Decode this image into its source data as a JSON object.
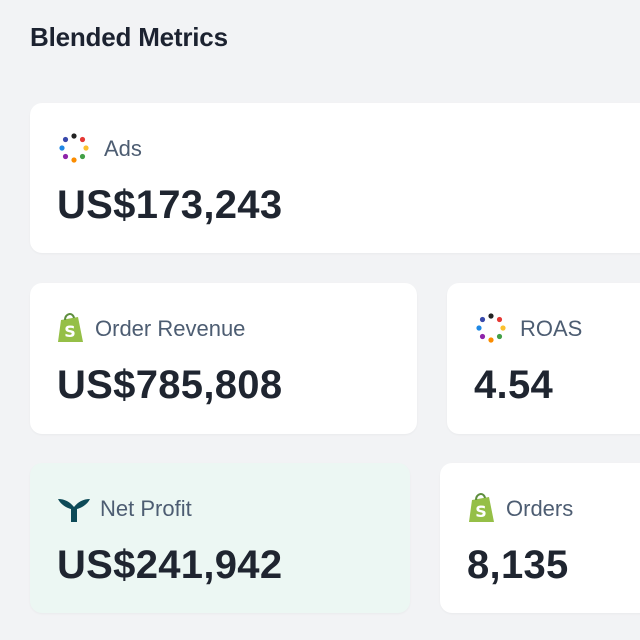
{
  "header": {
    "title": "Blended Metrics"
  },
  "cards": [
    {
      "label": "Ads",
      "value": "US$173,243"
    },
    {
      "label": "Order Revenue",
      "value": "US$785,808"
    },
    {
      "label": "ROAS",
      "value": "4.54"
    },
    {
      "label": "Net Profit",
      "value": "US$241,942"
    },
    {
      "label": "Orders",
      "value": "8,135"
    }
  ]
}
